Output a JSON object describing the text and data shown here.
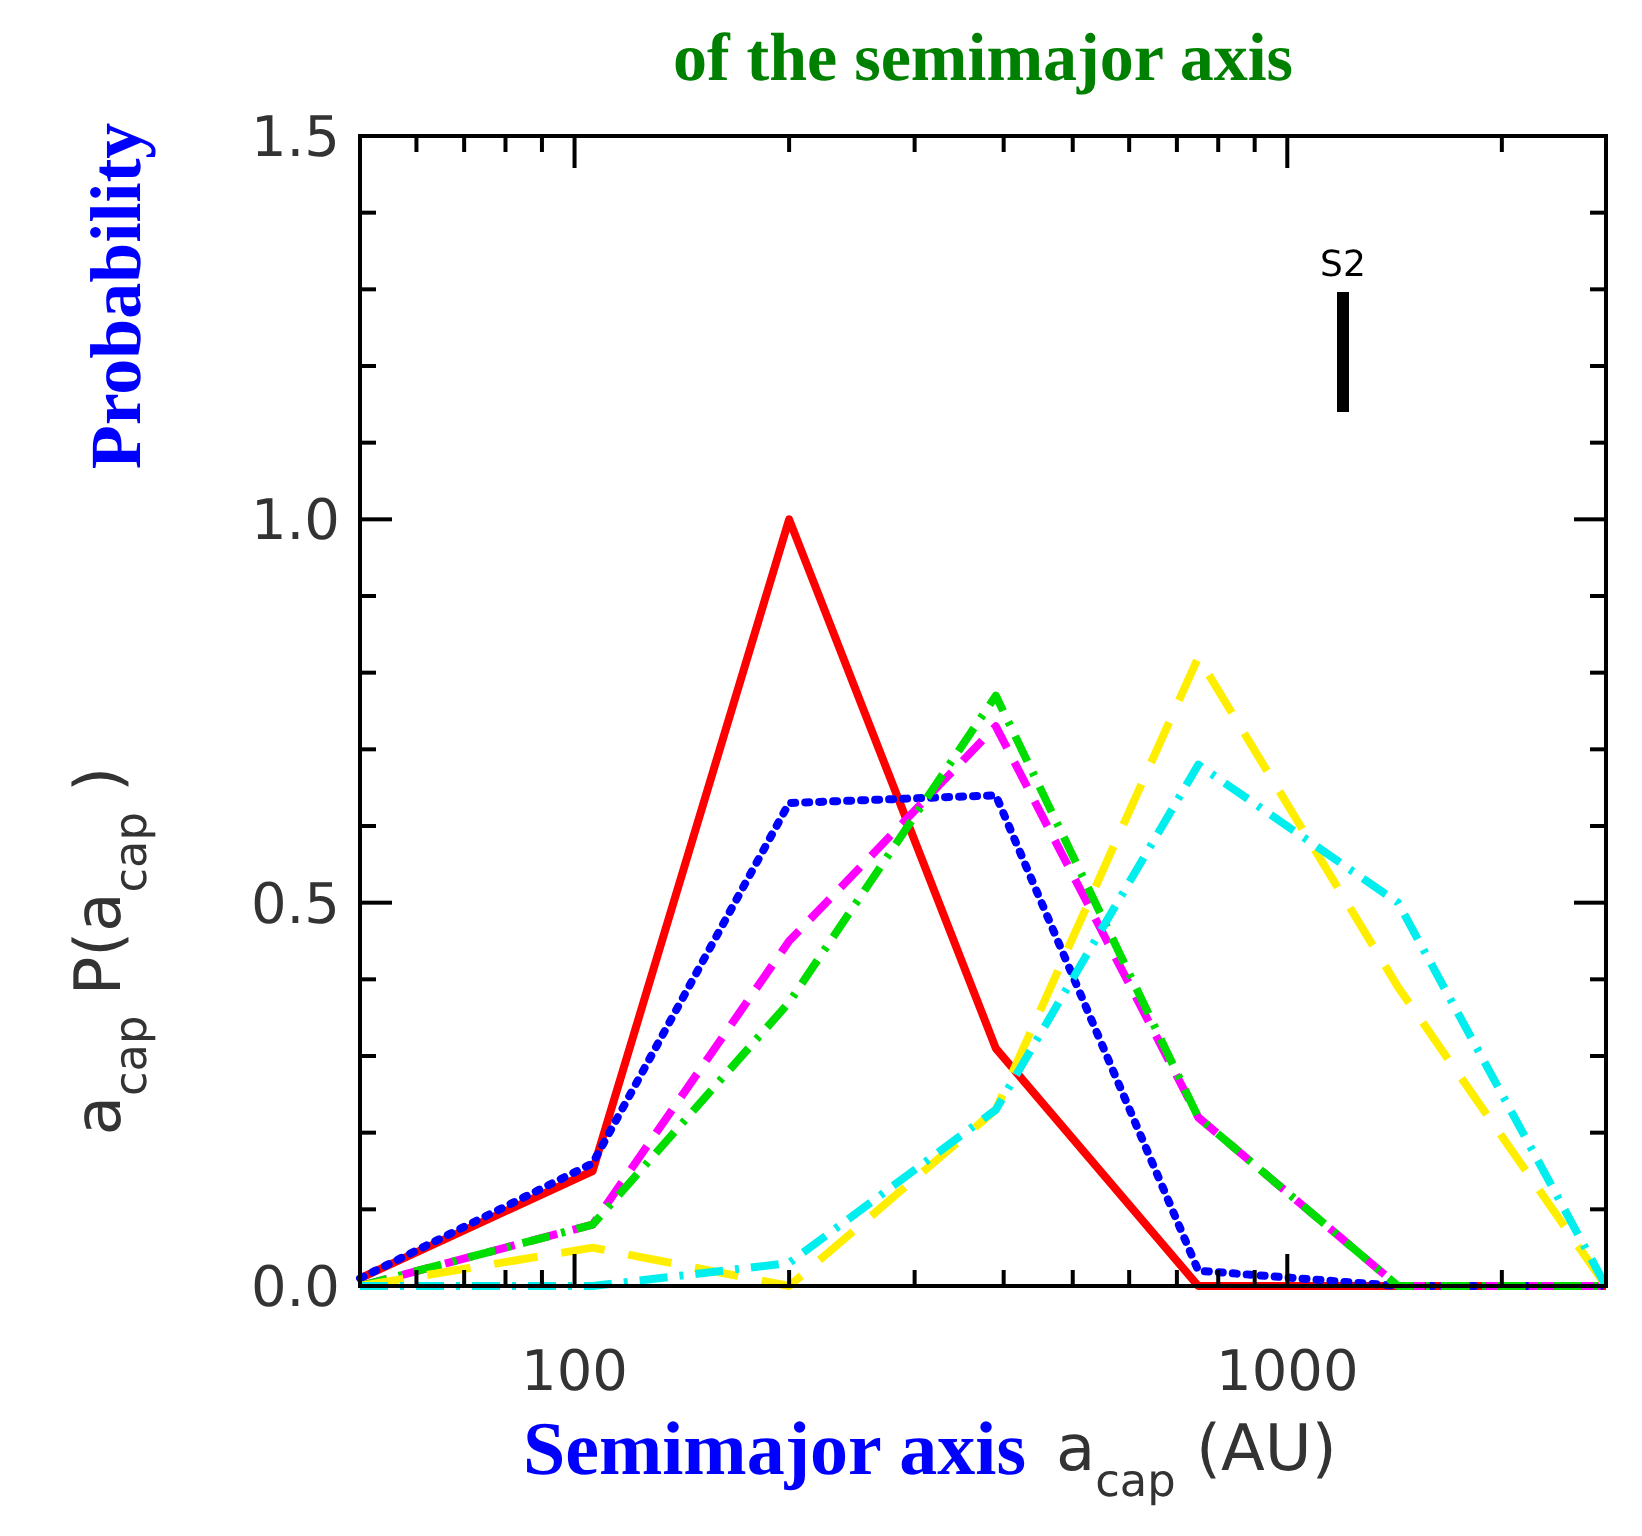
{
  "chart_data": {
    "type": "line",
    "title": "of the semimajor axis",
    "xlabel": "a$_{cap}$ (AU)",
    "ylabel": "a$_{cap}$ P(a$_{cap}$)",
    "log": "x",
    "x": [
      50,
      106,
      200,
      390,
      750,
      1430,
      2800
    ],
    "xlim": [
      50,
      2800
    ],
    "xticks": [
      {
        "value": 60,
        "label": null
      },
      {
        "value": 70,
        "label": null
      },
      {
        "value": 80,
        "label": null
      },
      {
        "value": 90,
        "label": null
      },
      100,
      {
        "value": 200,
        "label": null
      },
      {
        "value": 300,
        "label": null
      },
      {
        "value": 400,
        "label": null
      },
      {
        "value": 500,
        "label": null
      },
      {
        "value": 600,
        "label": null
      },
      {
        "value": 700,
        "label": null
      },
      {
        "value": 800,
        "label": null
      },
      {
        "value": 900,
        "label": null
      },
      1000,
      {
        "value": 2000,
        "label": null
      }
    ],
    "ylim": [
      0,
      1.5
    ],
    "yticks": [
      {
        "value": 0,
        "label": "0.0"
      },
      {
        "value": 0.1,
        "label": null
      },
      {
        "value": 0.2,
        "label": null
      },
      {
        "value": 0.3,
        "label": null
      },
      {
        "value": 0.4,
        "label": null
      },
      {
        "value": 0.5,
        "label": "0.5"
      },
      {
        "value": 0.6,
        "label": null
      },
      {
        "value": 0.7,
        "label": null
      },
      {
        "value": 0.8,
        "label": null
      },
      {
        "value": 0.9,
        "label": null
      },
      {
        "value": 1,
        "label": "1.0"
      },
      {
        "value": 1.1,
        "label": null
      },
      {
        "value": 1.2,
        "label": null
      },
      {
        "value": 1.3,
        "label": null
      },
      {
        "value": 1.4,
        "label": null
      },
      {
        "value": 1.5,
        "label": "1.5"
      }
    ],
    "series": [
      {
        "color": "#ff0000",
        "line_style": "solid",
        "values": [
          0.01,
          0.15,
          1.0,
          0.31,
          0,
          0,
          0
        ]
      },
      {
        "color": "#0000ff",
        "line_style": "dotted",
        "values": [
          0.01,
          0.16,
          0.63,
          0.64,
          0.02,
          0,
          0
        ]
      },
      {
        "color": "#ff00ff",
        "line_style": "dashed",
        "values": [
          0,
          0.08,
          0.45,
          0.73,
          0.22,
          0,
          0
        ]
      },
      {
        "color": "#00dd00",
        "line_style": "dashdot",
        "values": [
          0,
          0.08,
          0.37,
          0.77,
          0.22,
          0,
          0
        ]
      },
      {
        "color": "#ffee00",
        "line_style": "longdash",
        "values": [
          0,
          0.05,
          0,
          0.23,
          0.82,
          0.39,
          0
        ]
      },
      {
        "color": "#00eeee",
        "line_style": "dashdot",
        "values": [
          0,
          0,
          0.03,
          0.23,
          0.68,
          0.5,
          0
        ]
      }
    ],
    "annotations": [
      "S2",
      "Probability",
      "Semimajor axis"
    ]
  }
}
